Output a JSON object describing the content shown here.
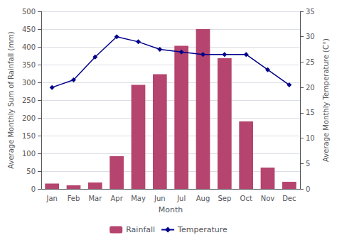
{
  "chart_data": {
    "type": "bar",
    "xlabel": "Month",
    "ylabel": "Average Monthly Sum of Rainfall (mm)",
    "y2label": "Average Monthly Temperature (C°)",
    "categories": [
      "Jan",
      "Feb",
      "Mar",
      "Apr",
      "May",
      "Jun",
      "Jul",
      "Aug",
      "Sep",
      "Oct",
      "Nov",
      "Dec"
    ],
    "series": [
      {
        "name": "Rainfall",
        "type": "bar",
        "color": "#b5446e",
        "values": [
          15,
          10,
          18,
          92,
          293,
          323,
          403,
          450,
          368,
          190,
          60,
          20
        ]
      },
      {
        "name": "Temperature",
        "type": "line",
        "axis": "y2",
        "color": "#00008b",
        "marker": "diamond",
        "values": [
          20.0,
          21.5,
          26.0,
          30.0,
          29.0,
          27.5,
          27.0,
          26.5,
          26.5,
          26.5,
          23.5,
          20.5
        ]
      }
    ],
    "ylim": [
      0,
      500
    ],
    "yticks": [
      0,
      50,
      100,
      150,
      200,
      250,
      300,
      350,
      400,
      450,
      500
    ],
    "y2lim": [
      0,
      35
    ],
    "y2ticks": [
      0,
      5,
      10,
      15,
      20,
      25,
      30,
      35
    ],
    "grid": true,
    "legend": "bottom"
  }
}
